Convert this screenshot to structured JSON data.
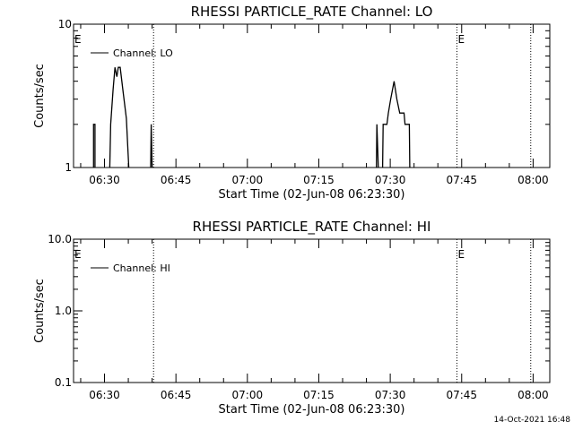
{
  "footer": {
    "timestamp": "14-Oct-2021 16:48"
  },
  "chart_data": [
    {
      "type": "line",
      "title": "RHESSI PARTICLE_RATE Channel: LO",
      "xlabel": "Start Time (02-Jun-08 06:23:30)",
      "ylabel": "Counts/sec",
      "yscale": "log",
      "ylim": [
        1,
        10
      ],
      "y_tick_labels": [
        "1",
        "10"
      ],
      "y_ticks": [
        1,
        10
      ],
      "x_unit": "minutes after 06:23:30",
      "xlim": [
        0,
        100
      ],
      "x_tick_labels": [
        "06:30",
        "06:45",
        "07:00",
        "07:15",
        "07:30",
        "07:45",
        "08:00"
      ],
      "x_ticks": [
        6.5,
        21.5,
        36.5,
        51.5,
        66.5,
        81.5,
        96.5
      ],
      "legend": {
        "label": "Channel: LO",
        "position": "top-left"
      },
      "vlines": [
        16.8,
        80.5,
        96.0
      ],
      "markers": [
        {
          "x": 0.2,
          "text": "E"
        },
        {
          "x": 80.7,
          "text": "E"
        }
      ],
      "series": [
        {
          "name": "Channel: LO",
          "segments": [
            [
              [
                4.2,
                1
              ],
              [
                4.2,
                2
              ],
              [
                4.5,
                2
              ],
              [
                4.5,
                1
              ]
            ],
            [
              [
                7.6,
                1
              ],
              [
                7.8,
                2
              ],
              [
                8.3,
                3.5
              ],
              [
                8.7,
                5
              ],
              [
                9.1,
                4.3
              ],
              [
                9.4,
                5
              ],
              [
                9.8,
                5
              ],
              [
                10.4,
                3.4
              ],
              [
                11.1,
                2.2
              ],
              [
                11.6,
                1
              ]
            ],
            [
              [
                16.2,
                1
              ],
              [
                16.3,
                2
              ],
              [
                16.5,
                1
              ]
            ],
            [
              [
                63.6,
                1
              ],
              [
                63.7,
                2
              ],
              [
                64.0,
                1
              ]
            ],
            [
              [
                64.9,
                1
              ],
              [
                65.0,
                2
              ],
              [
                65.8,
                2
              ],
              [
                66.1,
                2.4
              ],
              [
                66.6,
                3
              ],
              [
                67.3,
                4
              ],
              [
                67.9,
                3
              ],
              [
                68.5,
                2.4
              ],
              [
                69.4,
                2.4
              ],
              [
                69.6,
                2
              ],
              [
                70.5,
                2
              ],
              [
                70.6,
                1
              ]
            ]
          ]
        }
      ]
    },
    {
      "type": "line",
      "title": "RHESSI PARTICLE_RATE Channel: HI",
      "xlabel": "Start Time (02-Jun-08 06:23:30)",
      "ylabel": "Counts/sec",
      "yscale": "log",
      "ylim": [
        0.1,
        10
      ],
      "y_tick_labels": [
        "0.1",
        "1.0",
        "10.0"
      ],
      "y_ticks": [
        0.1,
        1,
        10
      ],
      "x_unit": "minutes after 06:23:30",
      "xlim": [
        0,
        100
      ],
      "x_tick_labels": [
        "06:30",
        "06:45",
        "07:00",
        "07:15",
        "07:30",
        "07:45",
        "08:00"
      ],
      "x_ticks": [
        6.5,
        21.5,
        36.5,
        51.5,
        66.5,
        81.5,
        96.5
      ],
      "legend": {
        "label": "Channel: HI",
        "position": "top-left"
      },
      "vlines": [
        16.8,
        80.5,
        96.0
      ],
      "markers": [
        {
          "x": 0.2,
          "text": "E"
        },
        {
          "x": 80.7,
          "text": "E"
        }
      ],
      "series": [
        {
          "name": "Channel: HI",
          "segments": []
        }
      ]
    }
  ]
}
